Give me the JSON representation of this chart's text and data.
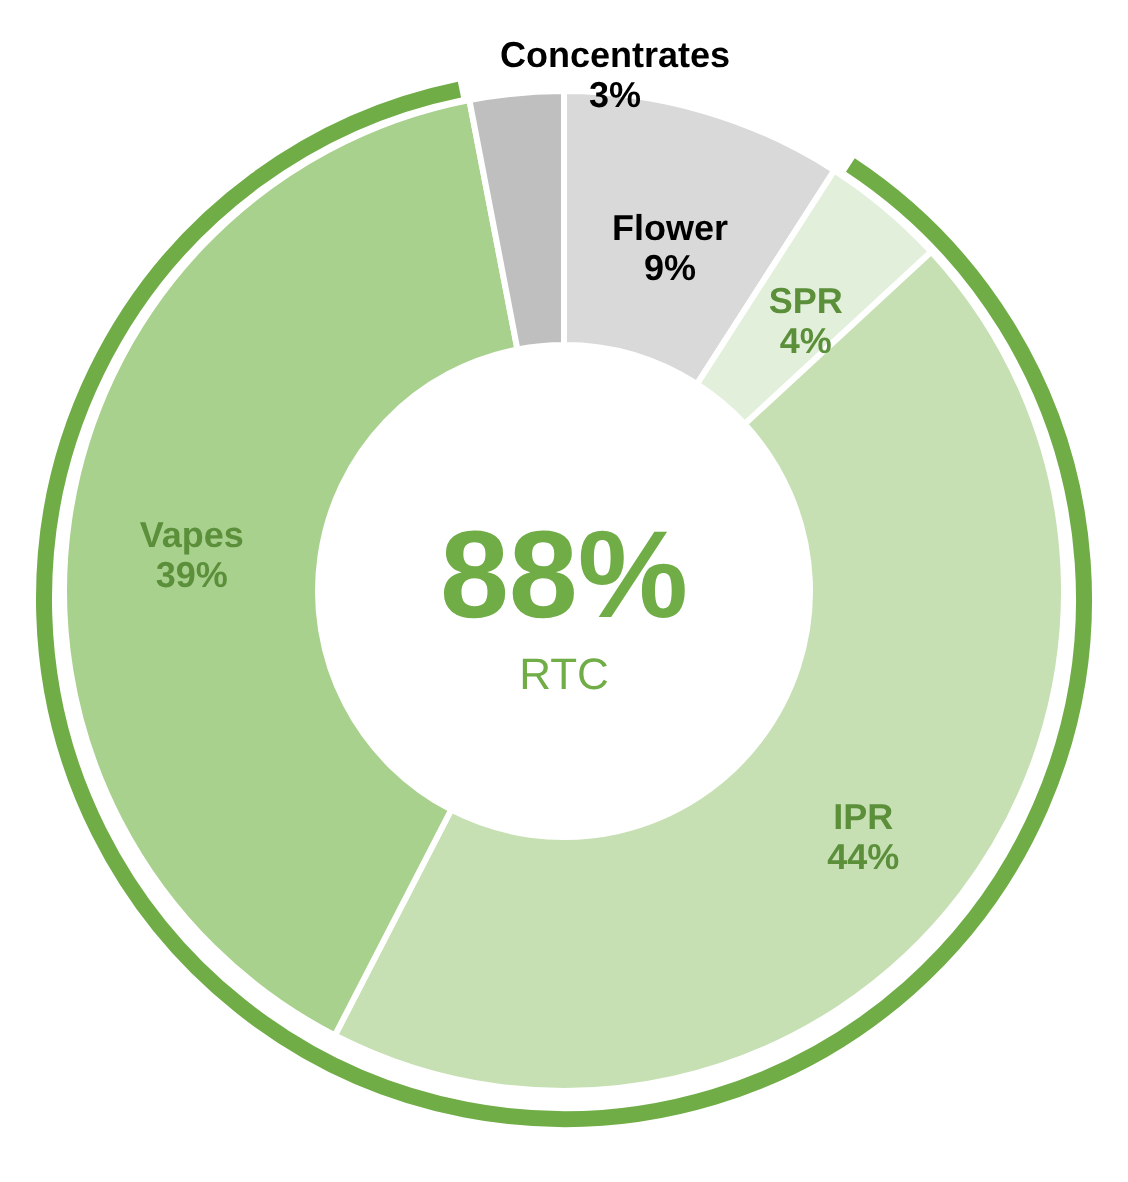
{
  "chart_data": {
    "type": "donut",
    "categories": [
      "Flower",
      "SPR",
      "IPR",
      "Vapes",
      "Concentrates"
    ],
    "values": [
      9,
      4,
      44,
      39,
      3
    ],
    "value_labels": [
      "9%",
      "4%",
      "44%",
      "39%",
      "3%"
    ],
    "colors": [
      "#d9d9d9",
      "#e2efda",
      "#c6e0b4",
      "#a9d18e",
      "#bfbfbf"
    ],
    "annotations": [
      "88%",
      "RTC"
    ]
  }
}
